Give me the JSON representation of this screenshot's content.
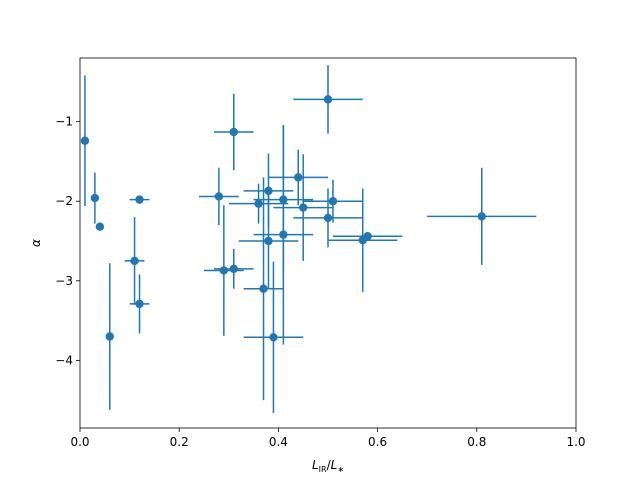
{
  "chart_data": {
    "type": "scatter",
    "title": "",
    "xlabel_main": "L",
    "xlabel_sub1": "IR",
    "xlabel_sep": "/",
    "xlabel_main2": "L",
    "xlabel_sub2": "∗",
    "ylabel": "α",
    "xlim": [
      0.0,
      1.0
    ],
    "ylim": [
      -4.85,
      -0.2
    ],
    "x_ticks": [
      0.0,
      0.2,
      0.4,
      0.6,
      0.8,
      1.0
    ],
    "x_tick_labels": [
      "0.0",
      "0.2",
      "0.4",
      "0.6",
      "0.8",
      "1.0"
    ],
    "y_ticks": [
      -4,
      -3,
      -2,
      -1
    ],
    "y_tick_labels": [
      "−4",
      "−3",
      "−2",
      "−1"
    ],
    "grid": false,
    "color": "#1f77b4",
    "series": [
      {
        "points": [
          {
            "x": 0.01,
            "y": -1.24,
            "xerr": 0.0,
            "yerr": 0.82
          },
          {
            "x": 0.03,
            "y": -1.96,
            "xerr": 0.0,
            "yerr": 0.32
          },
          {
            "x": 0.04,
            "y": -2.32,
            "xerr": 0.0,
            "yerr": 0.0
          },
          {
            "x": 0.06,
            "y": -3.7,
            "xerr": 0.0,
            "yerr": 0.92
          },
          {
            "x": 0.11,
            "y": -2.75,
            "xerr": 0.02,
            "yerr": 0.55
          },
          {
            "x": 0.12,
            "y": -1.98,
            "xerr": 0.02,
            "yerr": 0.0
          },
          {
            "x": 0.12,
            "y": -3.29,
            "xerr": 0.02,
            "yerr": 0.37
          },
          {
            "x": 0.28,
            "y": -1.94,
            "xerr": 0.04,
            "yerr": 0.36
          },
          {
            "x": 0.29,
            "y": -2.87,
            "xerr": 0.04,
            "yerr": 0.82
          },
          {
            "x": 0.31,
            "y": -1.13,
            "xerr": 0.04,
            "yerr": 0.48
          },
          {
            "x": 0.31,
            "y": -2.85,
            "xerr": 0.04,
            "yerr": 0.25
          },
          {
            "x": 0.36,
            "y": -2.03,
            "xerr": 0.06,
            "yerr": 0.25
          },
          {
            "x": 0.37,
            "y": -3.1,
            "xerr": 0.04,
            "yerr": 1.4
          },
          {
            "x": 0.38,
            "y": -1.87,
            "xerr": 0.05,
            "yerr": 0.47
          },
          {
            "x": 0.38,
            "y": -2.5,
            "xerr": 0.06,
            "yerr": 0.6
          },
          {
            "x": 0.39,
            "y": -3.71,
            "xerr": 0.06,
            "yerr": 0.95
          },
          {
            "x": 0.41,
            "y": -1.98,
            "xerr": 0.06,
            "yerr": 0.93
          },
          {
            "x": 0.41,
            "y": -2.42,
            "xerr": 0.06,
            "yerr": 1.38
          },
          {
            "x": 0.44,
            "y": -1.7,
            "xerr": 0.06,
            "yerr": 0.35
          },
          {
            "x": 0.45,
            "y": -2.08,
            "xerr": 0.06,
            "yerr": 0.67
          },
          {
            "x": 0.5,
            "y": -0.72,
            "xerr": 0.07,
            "yerr": 0.43
          },
          {
            "x": 0.5,
            "y": -2.21,
            "xerr": 0.07,
            "yerr": 0.37
          },
          {
            "x": 0.51,
            "y": -2.0,
            "xerr": 0.06,
            "yerr": 0.27
          },
          {
            "x": 0.57,
            "y": -2.49,
            "xerr": 0.07,
            "yerr": 0.65
          },
          {
            "x": 0.58,
            "y": -2.44,
            "xerr": 0.07,
            "yerr": 0.0
          },
          {
            "x": 0.81,
            "y": -2.19,
            "xerr": 0.11,
            "yerr": 0.61
          }
        ]
      }
    ]
  }
}
